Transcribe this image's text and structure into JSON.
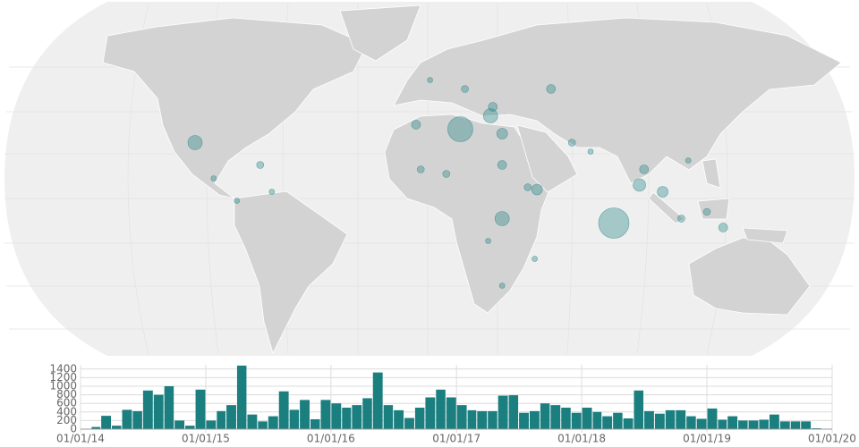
{
  "map": {
    "color": "#1b7f80",
    "points": [
      {
        "lon": 14,
        "lat": 31,
        "size": 14
      },
      {
        "lon": 80,
        "lat": -11,
        "size": 17
      },
      {
        "lon": 32,
        "lat": -9,
        "size": 8
      },
      {
        "lon": -100,
        "lat": 25,
        "size": 8
      },
      {
        "lon": 27,
        "lat": 37,
        "size": 8
      },
      {
        "lon": 47,
        "lat": 4,
        "size": 6
      },
      {
        "lon": 93,
        "lat": 13,
        "size": 5
      },
      {
        "lon": 91,
        "lat": 6,
        "size": 7
      },
      {
        "lon": 101,
        "lat": 3,
        "size": 6
      },
      {
        "lon": 120,
        "lat": -6,
        "size": 4
      },
      {
        "lon": 127,
        "lat": -13,
        "size": 5
      },
      {
        "lon": 8,
        "lat": 11,
        "size": 4
      },
      {
        "lon": -5,
        "lat": 33,
        "size": 5
      },
      {
        "lon": 1,
        "lat": 53,
        "size": 3
      },
      {
        "lon": 16,
        "lat": 49,
        "size": 4
      },
      {
        "lon": 53,
        "lat": 49,
        "size": 5
      },
      {
        "lon": 62,
        "lat": 25,
        "size": 4
      },
      {
        "lon": 70,
        "lat": 21,
        "size": 3
      },
      {
        "lon": -72,
        "lat": 15,
        "size": 4
      },
      {
        "lon": -67,
        "lat": 3,
        "size": 3
      },
      {
        "lon": -82,
        "lat": -1,
        "size": 3
      },
      {
        "lon": 32,
        "lat": 15,
        "size": 5
      },
      {
        "lon": 43,
        "lat": 5,
        "size": 4
      },
      {
        "lon": 26,
        "lat": -19,
        "size": 3
      },
      {
        "lon": 32,
        "lat": -39,
        "size": 3
      },
      {
        "lon": 46,
        "lat": -27,
        "size": 3
      },
      {
        "lon": 109,
        "lat": -9,
        "size": 4
      },
      {
        "lon": 112,
        "lat": 17,
        "size": 3
      },
      {
        "lon": 28,
        "lat": 41,
        "size": 5
      },
      {
        "lon": -3,
        "lat": 13,
        "size": 4
      },
      {
        "lon": 32,
        "lat": 29,
        "size": 6
      },
      {
        "lon": -92,
        "lat": 9,
        "size": 3
      }
    ]
  },
  "chart_data": {
    "type": "histogram",
    "color": "#1b7f80",
    "grid": true,
    "bins": [
      "2014-01-01",
      "2014-02-01",
      "2014-03-01",
      "2014-04-01",
      "2014-05-01",
      "2014-06-01",
      "2014-07-01",
      "2014-08-01",
      "2014-09-01",
      "2014-10-01",
      "2014-11-01",
      "2014-12-01",
      "2015-01-01",
      "2015-02-01",
      "2015-03-01",
      "2015-04-01",
      "2015-05-01",
      "2015-06-01",
      "2015-07-01",
      "2015-08-01",
      "2015-09-01",
      "2015-10-01",
      "2015-11-01",
      "2015-12-01",
      "2016-01-01",
      "2016-02-01",
      "2016-03-01",
      "2016-04-01",
      "2016-05-01",
      "2016-06-01",
      "2016-07-01",
      "2016-08-01",
      "2016-09-01",
      "2016-10-01",
      "2016-11-01",
      "2016-12-01",
      "2017-01-01",
      "2017-02-01",
      "2017-03-01",
      "2017-04-01",
      "2017-05-01",
      "2017-06-01",
      "2017-07-01",
      "2017-08-01",
      "2017-09-01",
      "2017-10-01",
      "2017-11-01",
      "2017-12-01",
      "2018-01-01",
      "2018-02-01",
      "2018-03-01",
      "2018-04-01",
      "2018-05-01",
      "2018-06-01",
      "2018-07-01",
      "2018-08-01",
      "2018-09-01",
      "2018-10-01",
      "2018-11-01",
      "2018-12-01",
      "2019-01-01",
      "2019-02-01",
      "2019-03-01",
      "2019-04-01",
      "2019-05-01",
      "2019-06-01",
      "2019-07-01",
      "2019-08-01",
      "2019-09-01",
      "2019-10-01",
      "2019-11-01",
      "2019-12-01",
      "2020-01-01"
    ],
    "values": [
      10,
      50,
      310,
      80,
      450,
      420,
      900,
      800,
      1000,
      200,
      80,
      920,
      200,
      420,
      560,
      1480,
      340,
      180,
      300,
      880,
      450,
      680,
      230,
      680,
      600,
      500,
      560,
      720,
      1320,
      560,
      440,
      260,
      500,
      740,
      920,
      740,
      560,
      440,
      420,
      420,
      780,
      790,
      380,
      420,
      600,
      560,
      500,
      380,
      500,
      400,
      300,
      380,
      250,
      900,
      420,
      360,
      440,
      440,
      300,
      240,
      480,
      220,
      300,
      200,
      200,
      220,
      340,
      180,
      180,
      180,
      20,
      0
    ],
    "xlim": [
      "2014-01-01",
      "2020-01-01"
    ],
    "xticks": [
      {
        "value": "2014-01-01",
        "label": "01/01/14"
      },
      {
        "value": "2015-01-01",
        "label": "01/01/15"
      },
      {
        "value": "2016-01-01",
        "label": "01/01/16"
      },
      {
        "value": "2017-01-01",
        "label": "01/01/17"
      },
      {
        "value": "2018-01-01",
        "label": "01/01/18"
      },
      {
        "value": "2019-01-01",
        "label": "01/01/19"
      },
      {
        "value": "2020-01-01",
        "label": "01/01/20"
      }
    ],
    "ylim": [
      0,
      1500
    ],
    "yticks": [
      0,
      200,
      400,
      600,
      800,
      1000,
      1200,
      1400
    ]
  }
}
